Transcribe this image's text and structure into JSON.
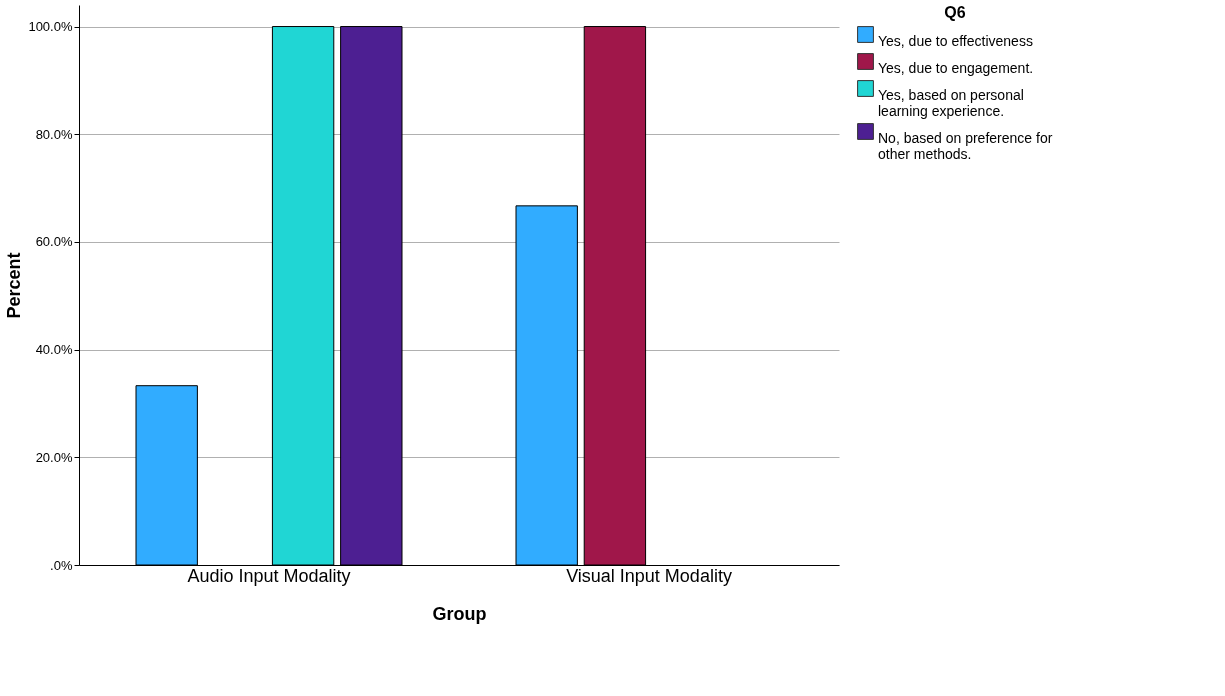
{
  "chart_data": {
    "type": "bar",
    "xlabel": "Group",
    "ylabel": "Percent",
    "legend_title": "Q6",
    "legend": "top right",
    "grid": "y",
    "categories": [
      "Audio Input Modality",
      "Visual Input Modality"
    ],
    "series": [
      {
        "name": "Yes, due to effectiveness",
        "color": "#31acff",
        "values": [
          33.3,
          66.7
        ]
      },
      {
        "name": "Yes, due to engagement.",
        "color": "#a0174a",
        "values": [
          null,
          100
        ]
      },
      {
        "name": "Yes, based on personal learning experience.",
        "color": "#20d6d4",
        "values": [
          100,
          null
        ]
      },
      {
        "name": "No, based on preference for other methods.",
        "color": "#4d1f92",
        "values": [
          100,
          null
        ]
      }
    ],
    "ylim": [
      0,
      104
    ],
    "yticks": [
      {
        "value": 0,
        "label": ".0%"
      },
      {
        "value": 20,
        "label": "20.0%"
      },
      {
        "value": 40,
        "label": "40.0%"
      },
      {
        "value": 60,
        "label": "60.0%"
      },
      {
        "value": 80,
        "label": "80.0%"
      },
      {
        "value": 100,
        "label": "100.0%"
      }
    ]
  }
}
